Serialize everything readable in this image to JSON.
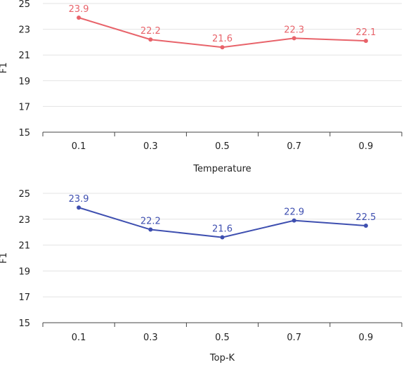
{
  "chart_data": [
    {
      "type": "line",
      "categories": [
        "0.1",
        "0.3",
        "0.5",
        "0.7",
        "0.9"
      ],
      "series": [
        {
          "values": [
            23.9,
            22.2,
            21.6,
            22.3,
            22.1
          ],
          "color": "#e8636a"
        }
      ],
      "data_labels": [
        "23.9",
        "22.2",
        "21.6",
        "22.3",
        "22.1"
      ],
      "xlabel": "Temperature",
      "ylabel": "F1",
      "ylim": [
        15,
        25
      ],
      "yticks": [
        "15",
        "17",
        "19",
        "21",
        "23",
        "25"
      ],
      "grid": true
    },
    {
      "type": "line",
      "categories": [
        "0.1",
        "0.3",
        "0.5",
        "0.7",
        "0.9"
      ],
      "series": [
        {
          "values": [
            23.9,
            22.2,
            21.6,
            22.9,
            22.5
          ],
          "color": "#3e4fb0"
        }
      ],
      "data_labels": [
        "23.9",
        "22.2",
        "21.6",
        "22.9",
        "22.5"
      ],
      "xlabel": "Top-K",
      "ylabel": "F1",
      "ylim": [
        15,
        25
      ],
      "yticks": [
        "15",
        "17",
        "19",
        "21",
        "23",
        "25"
      ],
      "grid": true
    }
  ]
}
